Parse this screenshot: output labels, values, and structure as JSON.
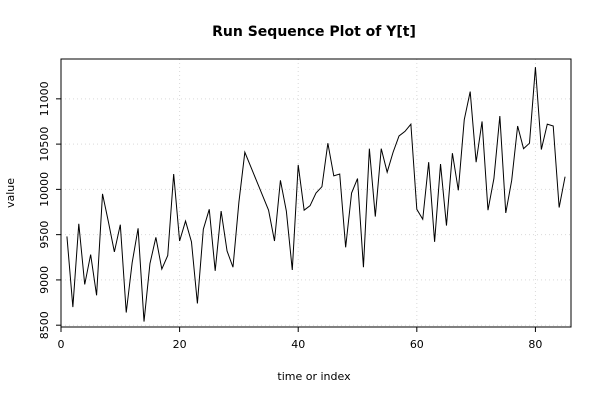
{
  "chart_data": {
    "type": "line",
    "title": "Run Sequence Plot of Y[t]",
    "xlabel": "time or index",
    "ylabel": "value",
    "xlim": [
      0,
      86
    ],
    "ylim": [
      8480,
      11440
    ],
    "x_ticks": [
      0,
      20,
      40,
      60,
      80
    ],
    "y_ticks": [
      8500,
      9000,
      9500,
      10000,
      10500,
      11000
    ],
    "grid": true,
    "series": [
      {
        "values": [
          9480,
          8700,
          9620,
          8950,
          9280,
          8830,
          9950,
          9640,
          9310,
          9610,
          8640,
          9190,
          9570,
          8540,
          9180,
          9470,
          9120,
          9270,
          10170,
          9430,
          9650,
          9420,
          8740,
          9560,
          9780,
          9100,
          9760,
          9320,
          9140,
          9860,
          10410,
          10250,
          10090,
          9930,
          9770,
          9430,
          10100,
          9760,
          9110,
          10270,
          9770,
          9820,
          9960,
          10030,
          10510,
          10150,
          10170,
          9360,
          9960,
          10120,
          9140,
          10450,
          9700,
          10450,
          10190,
          10410,
          10590,
          10640,
          10720,
          9780,
          9670,
          10300,
          9420,
          10280,
          9600,
          10400,
          9990,
          10770,
          11080,
          10300,
          10750,
          9770,
          10120,
          10810,
          9740,
          10100,
          10700,
          10450,
          10510,
          11350,
          10440,
          10720,
          10700,
          9800,
          10140
        ]
      }
    ]
  }
}
